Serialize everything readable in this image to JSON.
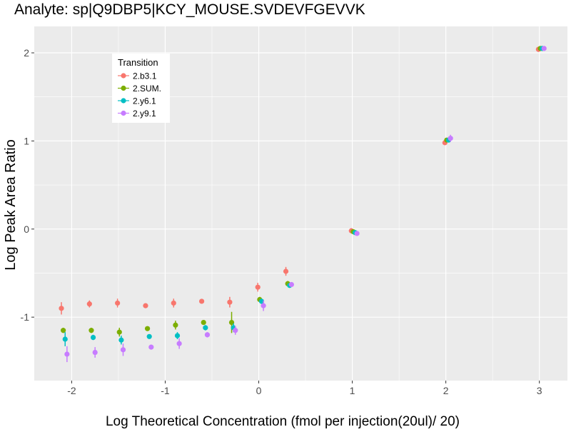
{
  "chart_data": {
    "type": "scatter",
    "title": "Analyte: sp|Q9DBP5|KCY_MOUSE.SVDEVFGEVVK",
    "xlabel": "Log Theoretical Concentration (fmol per injection(20ul)/ 20)",
    "ylabel": "Log Peak Area Ratio",
    "xlim": [
      -2.4,
      3.3
    ],
    "ylim": [
      -1.72,
      2.3
    ],
    "x_ticks": [
      -2,
      -1,
      0,
      1,
      2,
      3
    ],
    "x_tick_labels": [
      "-2",
      "-1",
      "0",
      "1",
      "2",
      "3"
    ],
    "y_ticks": [
      -1,
      0,
      1,
      2
    ],
    "y_tick_labels": [
      "-1",
      "0",
      "1",
      "2"
    ],
    "grid": true,
    "legend": {
      "title": "Transition",
      "placement": "top-left"
    },
    "series": [
      {
        "name": "2.b3.1",
        "color": "#F8766D",
        "points": [
          {
            "x": -2.11,
            "y": -0.9,
            "err": 0.07
          },
          {
            "x": -1.81,
            "y": -0.85,
            "err": 0.04
          },
          {
            "x": -1.51,
            "y": -0.84,
            "err": 0.05
          },
          {
            "x": -1.21,
            "y": -0.87,
            "err": 0.02
          },
          {
            "x": -0.91,
            "y": -0.84,
            "err": 0.05
          },
          {
            "x": -0.61,
            "y": -0.82,
            "err": 0.02
          },
          {
            "x": -0.31,
            "y": -0.83,
            "err": 0.06
          },
          {
            "x": -0.01,
            "y": -0.66,
            "err": 0.05
          },
          {
            "x": 0.29,
            "y": -0.48,
            "err": 0.05
          },
          {
            "x": 0.99,
            "y": -0.02,
            "err": 0.03
          },
          {
            "x": 1.99,
            "y": 0.98,
            "err": 0.02
          },
          {
            "x": 2.99,
            "y": 2.04,
            "err": 0.03
          }
        ]
      },
      {
        "name": "2.SUM.",
        "color": "#7CAE00",
        "points": [
          {
            "x": -2.09,
            "y": -1.15,
            "err": 0.03
          },
          {
            "x": -1.79,
            "y": -1.15,
            "err": 0.03
          },
          {
            "x": -1.49,
            "y": -1.17,
            "err": 0.05
          },
          {
            "x": -1.19,
            "y": -1.13,
            "err": 0.02
          },
          {
            "x": -0.89,
            "y": -1.09,
            "err": 0.05
          },
          {
            "x": -0.59,
            "y": -1.06,
            "err": 0.02
          },
          {
            "x": -0.29,
            "y": -1.06,
            "err": 0.12
          },
          {
            "x": 0.01,
            "y": -0.8,
            "err": 0.03
          },
          {
            "x": 0.31,
            "y": -0.62,
            "err": 0.03
          },
          {
            "x": 1.01,
            "y": -0.03,
            "err": 0.02
          },
          {
            "x": 2.01,
            "y": 1.01,
            "err": 0.02
          },
          {
            "x": 3.01,
            "y": 2.05,
            "err": 0.02
          }
        ]
      },
      {
        "name": "2.y6.1",
        "color": "#00BFC4",
        "points": [
          {
            "x": -2.07,
            "y": -1.25,
            "err": 0.08
          },
          {
            "x": -1.77,
            "y": -1.23,
            "err": 0.03
          },
          {
            "x": -1.47,
            "y": -1.26,
            "err": 0.05
          },
          {
            "x": -1.17,
            "y": -1.22,
            "err": 0.02
          },
          {
            "x": -0.87,
            "y": -1.21,
            "err": 0.04
          },
          {
            "x": -0.57,
            "y": -1.12,
            "err": 0.03
          },
          {
            "x": -0.27,
            "y": -1.12,
            "err": 0.05
          },
          {
            "x": 0.03,
            "y": -0.82,
            "err": 0.03
          },
          {
            "x": 0.33,
            "y": -0.64,
            "err": 0.02
          },
          {
            "x": 1.03,
            "y": -0.04,
            "err": 0.02
          },
          {
            "x": 2.03,
            "y": 1.01,
            "err": 0.02
          },
          {
            "x": 3.03,
            "y": 2.05,
            "err": 0.02
          }
        ]
      },
      {
        "name": "2.y9.1",
        "color": "#C77CFF",
        "points": [
          {
            "x": -2.05,
            "y": -1.42,
            "err": 0.09
          },
          {
            "x": -1.75,
            "y": -1.4,
            "err": 0.06
          },
          {
            "x": -1.45,
            "y": -1.37,
            "err": 0.07
          },
          {
            "x": -1.15,
            "y": -1.34,
            "err": 0.02
          },
          {
            "x": -0.85,
            "y": -1.3,
            "err": 0.06
          },
          {
            "x": -0.55,
            "y": -1.2,
            "err": 0.03
          },
          {
            "x": -0.25,
            "y": -1.15,
            "err": 0.05
          },
          {
            "x": 0.05,
            "y": -0.87,
            "err": 0.06
          },
          {
            "x": 0.35,
            "y": -0.63,
            "err": 0.02
          },
          {
            "x": 1.05,
            "y": -0.05,
            "err": 0.02
          },
          {
            "x": 2.05,
            "y": 1.03,
            "err": 0.04
          },
          {
            "x": 3.05,
            "y": 2.05,
            "err": 0.02
          }
        ]
      }
    ]
  }
}
